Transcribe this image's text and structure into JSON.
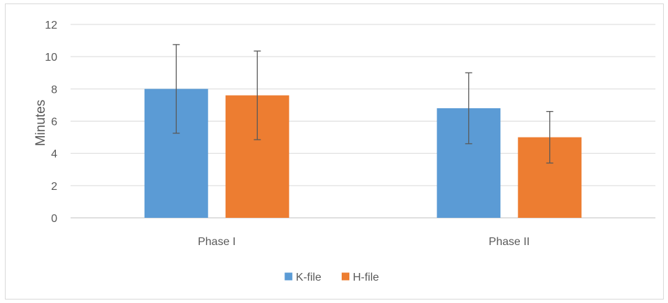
{
  "chart_data": {
    "type": "bar",
    "title": "",
    "xlabel": "",
    "ylabel": "Minutes",
    "ylim": [
      0,
      12
    ],
    "yticks": [
      0,
      2,
      4,
      6,
      8,
      10,
      12
    ],
    "grid": true,
    "legend_position": "bottom",
    "categories": [
      "Phase I",
      "Phase II"
    ],
    "series": [
      {
        "name": "K-file",
        "color": "#5b9bd5",
        "values": [
          8.0,
          6.8
        ],
        "error": [
          2.75,
          2.2
        ]
      },
      {
        "name": "H-file",
        "color": "#ed7d31",
        "values": [
          7.6,
          5.0
        ],
        "error": [
          2.75,
          1.6
        ]
      }
    ]
  }
}
